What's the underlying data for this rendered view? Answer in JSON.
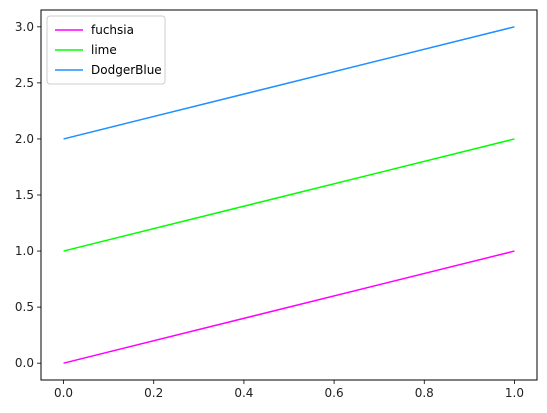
{
  "chart_data": {
    "type": "line",
    "title": "",
    "xlabel": "",
    "ylabel": "",
    "xlim": [
      -0.05,
      1.05
    ],
    "ylim": [
      -0.15,
      3.15
    ],
    "x_ticks": [
      0.0,
      0.2,
      0.4,
      0.6,
      0.8,
      1.0
    ],
    "x_tick_labels": [
      "0.0",
      "0.2",
      "0.4",
      "0.6",
      "0.8",
      "1.0"
    ],
    "y_ticks": [
      0.0,
      0.5,
      1.0,
      1.5,
      2.0,
      2.5,
      3.0
    ],
    "y_tick_labels": [
      "0.0",
      "0.5",
      "1.0",
      "1.5",
      "2.0",
      "2.5",
      "3.0"
    ],
    "grid": false,
    "legend_position": "top-left",
    "x": [
      0,
      1
    ],
    "series": [
      {
        "name": "fuchsia",
        "color": "#ff00ff",
        "values": [
          0,
          1
        ]
      },
      {
        "name": "lime",
        "color": "#00ff00",
        "values": [
          1,
          2
        ]
      },
      {
        "name": "DodgerBlue",
        "color": "#1e90ff",
        "values": [
          2,
          3
        ]
      }
    ]
  }
}
